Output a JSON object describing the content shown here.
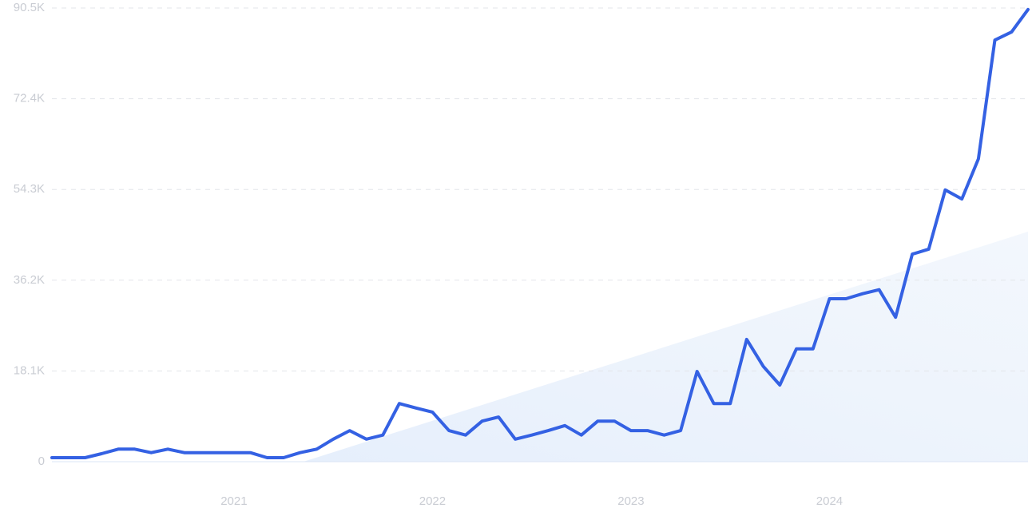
{
  "chart_data": {
    "type": "line",
    "x": [
      2020.083,
      2020.167,
      2020.25,
      2020.333,
      2020.417,
      2020.5,
      2020.583,
      2020.667,
      2020.75,
      2020.833,
      2020.917,
      2021,
      2021.083,
      2021.167,
      2021.25,
      2021.333,
      2021.417,
      2021.5,
      2021.583,
      2021.667,
      2021.75,
      2021.833,
      2021.917,
      2022,
      2022.083,
      2022.167,
      2022.25,
      2022.333,
      2022.417,
      2022.5,
      2022.583,
      2022.667,
      2022.75,
      2022.833,
      2022.917,
      2023,
      2023.083,
      2023.167,
      2023.25,
      2023.333,
      2023.417,
      2023.5,
      2023.583,
      2023.667,
      2023.75,
      2023.833,
      2023.917,
      2024,
      2024.083,
      2024.167,
      2024.25,
      2024.333,
      2024.417,
      2024.5,
      2024.583,
      2024.667,
      2024.75,
      2024.833,
      2024.917,
      2025
    ],
    "values": [
      800,
      800,
      800,
      1600,
      2500,
      2500,
      1800,
      2500,
      1800,
      1800,
      1800,
      1800,
      1800,
      800,
      800,
      1800,
      2500,
      4500,
      6200,
      4500,
      5300,
      11600,
      10700,
      9900,
      6200,
      5300,
      8100,
      8900,
      4500,
      5300,
      6200,
      7200,
      5300,
      8100,
      8100,
      6200,
      6200,
      5300,
      6200,
      18000,
      11600,
      11600,
      24400,
      19000,
      15300,
      22500,
      22500,
      32500,
      32500,
      33500,
      34300,
      28800,
      41400,
      42400,
      54200,
      52400,
      60400,
      84100,
      85700,
      90200
    ],
    "color": "#3461e3",
    "xlim": [
      2020.083,
      2025
    ],
    "xticks": [
      2021,
      2022,
      2023,
      2024
    ],
    "ylim": [
      0,
      90500
    ],
    "yticks": [
      0,
      {
        "value": 18100,
        "label": "18.1K"
      },
      {
        "value": 36200,
        "label": "36.2K"
      },
      {
        "value": 54300,
        "label": "54.3K"
      },
      {
        "value": 72400,
        "label": "72.4K"
      },
      {
        "value": 90500,
        "label": "90.5K"
      }
    ],
    "grid": true
  }
}
